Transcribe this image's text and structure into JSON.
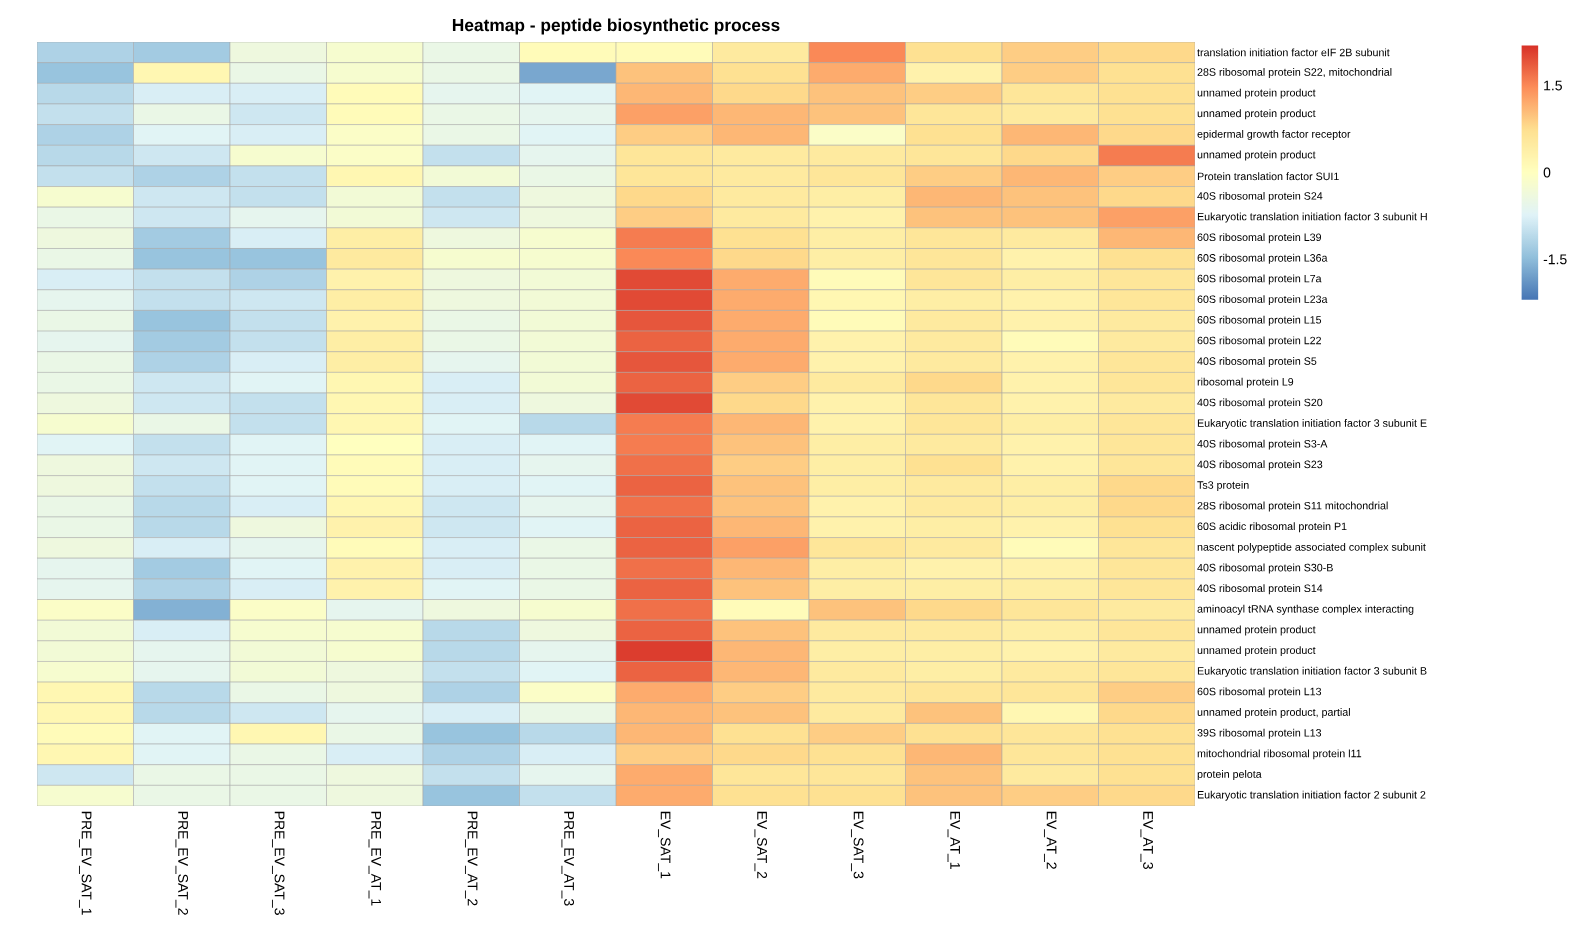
{
  "chart_data": {
    "type": "heatmap",
    "title": "Heatmap -  peptide biosynthetic process",
    "categories": [
      "PRE_EV_SAT_1",
      "PRE_EV_SAT_2",
      "PRE_EV_SAT_3",
      "PRE_EV_AT_1",
      "PRE_EV_AT_2",
      "PRE_EV_AT_3",
      "EV_SAT_1",
      "EV_SAT_2",
      "EV_SAT_3",
      "EV_AT_1",
      "EV_AT_2",
      "EV_AT_3"
    ],
    "y_categories": [
      "translation initiation factor eIF 2B subunit",
      "28S ribosomal protein S22, mitochondrial",
      "unnamed protein product",
      "unnamed protein product",
      "epidermal growth factor receptor",
      "unnamed protein product",
      "Protein translation factor SUI1",
      "40S ribosomal protein S24",
      "Eukaryotic translation initiation factor 3 subunit H",
      "60S ribosomal protein L39",
      "60S ribosomal protein L36a",
      "60S ribosomal protein L7a",
      "60S ribosomal protein L23a",
      "60S ribosomal protein L15",
      "60S ribosomal protein L22",
      "40S ribosomal protein S5",
      "ribosomal protein L9",
      "40S ribosomal protein S20",
      "Eukaryotic translation initiation factor 3 subunit E",
      "40S ribosomal protein S3-A",
      "40S ribosomal protein S23",
      "Ts3 protein",
      "28S ribosomal protein S11 mitochondrial",
      "60S acidic ribosomal protein P1",
      "nascent polypeptide associated complex subunit",
      "40S ribosomal protein S30-B",
      "40S ribosomal protein S14",
      "aminoacyl tRNA synthase complex interacting",
      "unnamed protein product",
      "unnamed protein product",
      "Eukaryotic translation initiation factor 3 subunit B",
      "60S ribosomal protein L13",
      "unnamed protein product, partial",
      "39S ribosomal protein L13",
      "mitochondrial ribosomal protein l11",
      "protein pelota",
      "Eukaryotic translation initiation factor 2 subunit 2"
    ],
    "cells": [
      [
        -1.2,
        -1.3,
        -0.4,
        -0.2,
        -0.5,
        0.1,
        0.1,
        0.5,
        1.5,
        0.7,
        0.9,
        0.8
      ],
      [
        -1.4,
        0.2,
        -0.5,
        -0.2,
        -0.5,
        -1.7,
        1.0,
        0.7,
        1.2,
        0.3,
        0.9,
        0.7
      ],
      [
        -1.1,
        -0.8,
        -0.8,
        0.1,
        -0.6,
        -0.7,
        1.1,
        0.8,
        1.0,
        0.9,
        0.6,
        0.7
      ],
      [
        -1.0,
        -0.5,
        -0.9,
        0.1,
        -0.5,
        -0.6,
        1.3,
        1.1,
        1.0,
        0.6,
        0.5,
        0.7
      ],
      [
        -1.2,
        -0.7,
        -0.8,
        -0.1,
        -0.5,
        -0.7,
        0.9,
        1.1,
        -0.1,
        0.7,
        1.1,
        0.8
      ],
      [
        -1.1,
        -0.9,
        -0.2,
        -0.1,
        -1.0,
        -0.6,
        0.6,
        0.5,
        0.5,
        0.6,
        0.8,
        1.6
      ],
      [
        -1.0,
        -1.2,
        -1.0,
        0.2,
        -0.3,
        -0.5,
        0.6,
        0.5,
        0.6,
        0.9,
        1.1,
        0.9
      ],
      [
        -0.2,
        -0.9,
        -1.0,
        -0.3,
        -1.0,
        -0.4,
        0.8,
        0.5,
        0.4,
        1.1,
        1.0,
        0.8
      ],
      [
        -0.5,
        -0.9,
        -0.6,
        -0.3,
        -0.9,
        -0.4,
        0.9,
        0.5,
        0.3,
        1.0,
        1.0,
        1.3
      ],
      [
        -0.4,
        -1.3,
        -0.8,
        0.4,
        -0.4,
        -0.2,
        1.6,
        0.7,
        0.4,
        0.6,
        0.5,
        1.1
      ],
      [
        -0.5,
        -1.4,
        -1.4,
        0.5,
        -0.2,
        -0.2,
        1.5,
        0.8,
        0.4,
        0.6,
        0.3,
        0.7
      ],
      [
        -0.8,
        -1.0,
        -1.2,
        0.3,
        -0.4,
        -0.3,
        2.0,
        1.2,
        0.1,
        0.6,
        0.4,
        0.6
      ],
      [
        -0.6,
        -1.0,
        -0.9,
        0.4,
        -0.4,
        -0.3,
        2.0,
        1.2,
        0.2,
        0.4,
        0.3,
        0.6
      ],
      [
        -0.5,
        -1.4,
        -1.0,
        0.3,
        -0.5,
        -0.3,
        1.9,
        1.2,
        0.1,
        0.5,
        0.3,
        0.5
      ],
      [
        -0.6,
        -1.3,
        -1.0,
        0.4,
        -0.5,
        -0.3,
        1.8,
        1.2,
        0.3,
        0.5,
        0.1,
        0.5
      ],
      [
        -0.5,
        -1.2,
        -0.8,
        0.4,
        -0.6,
        -0.3,
        1.9,
        1.2,
        0.3,
        0.5,
        0.3,
        0.6
      ],
      [
        -0.5,
        -0.9,
        -0.7,
        0.2,
        -0.8,
        -0.3,
        1.8,
        0.9,
        0.5,
        0.8,
        0.3,
        0.6
      ],
      [
        -0.4,
        -0.9,
        -1.0,
        0.2,
        -0.8,
        -0.4,
        2.0,
        0.8,
        0.3,
        0.6,
        0.3,
        0.5
      ],
      [
        -0.2,
        -0.5,
        -1.0,
        0.2,
        -0.7,
        -1.1,
        1.6,
        1.1,
        0.3,
        0.6,
        0.4,
        0.6
      ],
      [
        -0.7,
        -1.0,
        -0.7,
        0.0,
        -0.8,
        -0.7,
        1.6,
        1.0,
        0.4,
        0.5,
        0.3,
        0.6
      ],
      [
        -0.4,
        -0.9,
        -0.7,
        0.1,
        -0.8,
        -0.6,
        1.7,
        0.9,
        0.4,
        0.7,
        0.3,
        0.6
      ],
      [
        -0.4,
        -1.0,
        -0.7,
        0.1,
        -0.8,
        -0.7,
        1.8,
        1.0,
        0.4,
        0.5,
        0.4,
        0.8
      ],
      [
        -0.5,
        -1.1,
        -0.8,
        0.2,
        -0.9,
        -0.6,
        1.7,
        1.0,
        0.3,
        0.5,
        0.4,
        0.8
      ],
      [
        -0.5,
        -1.1,
        -0.4,
        0.3,
        -0.9,
        -0.7,
        1.8,
        1.1,
        0.3,
        0.4,
        0.3,
        0.7
      ],
      [
        -0.4,
        -0.8,
        -0.6,
        0.1,
        -0.8,
        -0.5,
        1.8,
        1.3,
        0.6,
        0.5,
        0.1,
        0.6
      ],
      [
        -0.6,
        -1.3,
        -0.7,
        0.3,
        -0.8,
        -0.5,
        1.7,
        1.1,
        0.4,
        0.3,
        0.3,
        0.6
      ],
      [
        -0.6,
        -1.2,
        -0.8,
        0.3,
        -0.7,
        -0.5,
        1.8,
        1.0,
        0.4,
        0.4,
        0.4,
        0.6
      ],
      [
        -0.1,
        -1.6,
        -0.1,
        -0.6,
        -0.4,
        -0.2,
        1.7,
        0.1,
        1.0,
        0.8,
        0.6,
        0.5
      ],
      [
        -0.3,
        -0.8,
        -0.2,
        -0.2,
        -1.1,
        -0.4,
        1.8,
        1.0,
        0.5,
        0.5,
        0.4,
        0.6
      ],
      [
        -0.3,
        -0.6,
        -0.3,
        -0.2,
        -1.1,
        -0.6,
        2.1,
        1.1,
        0.4,
        0.4,
        0.3,
        0.5
      ],
      [
        -0.2,
        -0.6,
        -0.3,
        -0.4,
        -1.0,
        -0.7,
        1.8,
        1.1,
        0.5,
        0.4,
        0.5,
        0.6
      ],
      [
        0.2,
        -1.1,
        -0.5,
        -0.4,
        -1.2,
        -0.1,
        1.2,
        0.9,
        0.5,
        0.6,
        0.6,
        0.9
      ],
      [
        0.2,
        -1.1,
        -0.9,
        -0.6,
        -0.8,
        -0.5,
        1.1,
        1.0,
        0.5,
        1.0,
        0.2,
        0.8
      ],
      [
        0.1,
        -0.7,
        0.2,
        -0.5,
        -1.4,
        -1.1,
        1.1,
        0.7,
        0.9,
        0.7,
        0.6,
        0.7
      ],
      [
        0.2,
        -0.7,
        -0.5,
        -0.8,
        -1.2,
        -0.8,
        0.9,
        0.8,
        0.7,
        1.1,
        0.6,
        0.7
      ],
      [
        -0.9,
        -0.5,
        -0.5,
        -0.4,
        -1.0,
        -0.6,
        1.2,
        0.6,
        0.6,
        1.0,
        0.5,
        0.7
      ],
      [
        -0.2,
        -0.5,
        -0.5,
        -0.4,
        -1.4,
        -1.0,
        1.2,
        0.7,
        0.7,
        1.0,
        0.9,
        0.8
      ]
    ],
    "clim": [
      -2.2,
      2.2
    ],
    "cticks": [
      -1.5,
      0,
      1.5
    ]
  }
}
